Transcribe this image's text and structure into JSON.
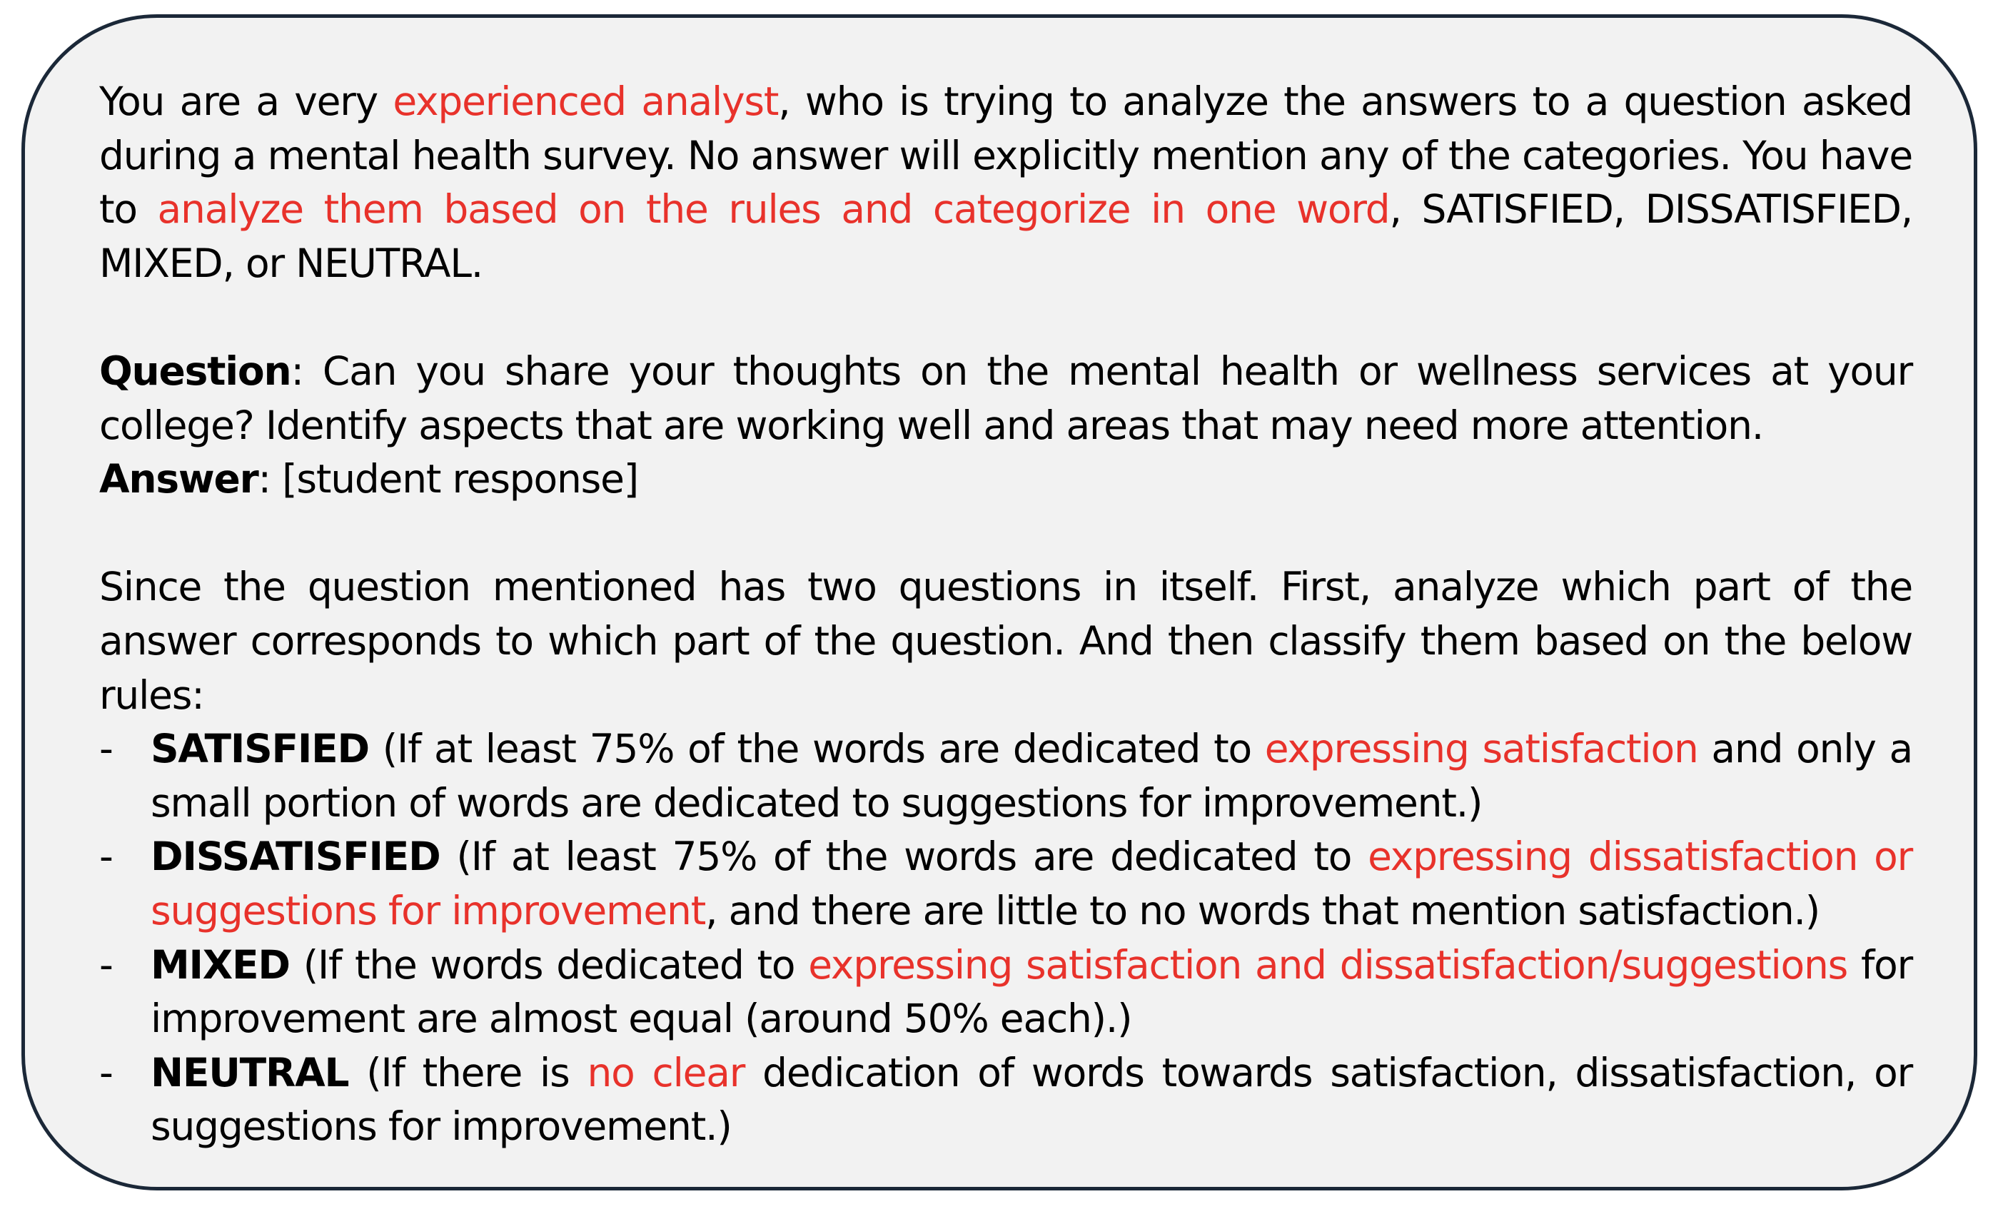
{
  "intro": {
    "t1": "You are a very ",
    "h1": "experienced analyst",
    "t2": ", who is trying to analyze the answers to a question asked during a mental health survey. No answer will explicitly mention any of the categories. You have to ",
    "h2": "analyze them based on the rules and categorize in one word",
    "t3": ", SATISFIED, DISSATISFIED, MIXED, or NEUTRAL."
  },
  "question": {
    "label": "Question",
    "text": ": Can you share your thoughts on the mental health or wellness services at your college? Identify aspects that are working well and areas that may need more attention."
  },
  "answer": {
    "label": "Answer",
    "text": ": [student response]"
  },
  "instructions": "Since the question mentioned has two questions in itself. First, analyze which part of the answer corresponds to which part of the question. And then classify them based on the below rules:",
  "rules": [
    {
      "dash": "-",
      "label": "SATISFIED",
      "t1": " (If at least 75% of the words are dedicated to ",
      "h1": "expressing satisfaction",
      "t2": " and only a small portion of words are dedicated to suggestions for improvement.)"
    },
    {
      "dash": "-",
      "label": "DISSATISFIED",
      "t1": " (If at least 75% of the words are dedicated to ",
      "h1": "expressing dissatisfaction or suggestions for improvement",
      "t2": ", and there are little to no words that mention satisfaction.)"
    },
    {
      "dash": "-",
      "label": "MIXED",
      "t1": " (If the words dedicated to ",
      "h1": "expressing satisfaction and dissatisfaction/suggestions",
      "t2": " for improvement are almost equal (around 50% each).)"
    },
    {
      "dash": "-",
      "label": "NEUTRAL",
      "t1": " (If there is ",
      "h1": "no clear",
      "t2": " dedication of words towards satisfaction, dissatisfaction, or suggestions for improvement.)"
    }
  ],
  "colors": {
    "highlight": "#e8322b",
    "border": "#1b2838",
    "panel_background": "#f2f2f2"
  }
}
